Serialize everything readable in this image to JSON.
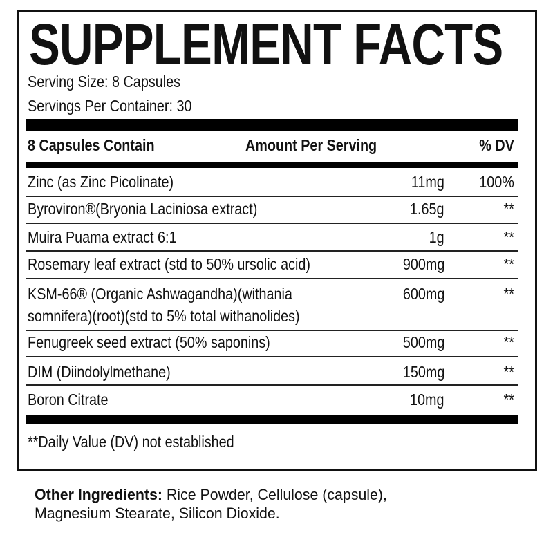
{
  "title": "SUPPLEMENT FACTS",
  "serving_size": "Serving Size: 8 Capsules",
  "servings_per_container": "Servings Per Container: 30",
  "header": {
    "col1": "8 Capsules Contain",
    "col2": "Amount Per Serving",
    "col3": "% DV"
  },
  "rows": [
    {
      "name": "Zinc (as Zinc Picolinate)",
      "amount": "11mg",
      "dv": "100%"
    },
    {
      "name": "Byroviron®(Bryonia Laciniosa extract)",
      "amount": "1.65g",
      "dv": "**"
    },
    {
      "name": "Muira Puama extract 6:1",
      "amount": "1g",
      "dv": "**"
    },
    {
      "name": "Rosemary leaf extract (std to 50% ursolic acid)",
      "amount": "900mg",
      "dv": "**"
    },
    {
      "name": "KSM-66® (Organic Ashwagandha)(withania",
      "name2": "somnifera)(root)(std to 5% total withanolides)",
      "amount": "600mg",
      "dv": "**"
    },
    {
      "name": "Fenugreek seed extract (50% saponins)",
      "amount": "500mg",
      "dv": "**"
    },
    {
      "name": "DIM (Diindolylmethane)",
      "amount": "150mg",
      "dv": "**"
    },
    {
      "name": "Boron Citrate",
      "amount": "10mg",
      "dv": "**"
    }
  ],
  "footnote": "**Daily Value (DV) not established",
  "other_ingredients": {
    "label": "Other Ingredients:",
    "line1": " Rice Powder, Cellulose (capsule),",
    "line2": "Magnesium Stearate, Silicon Dioxide."
  }
}
